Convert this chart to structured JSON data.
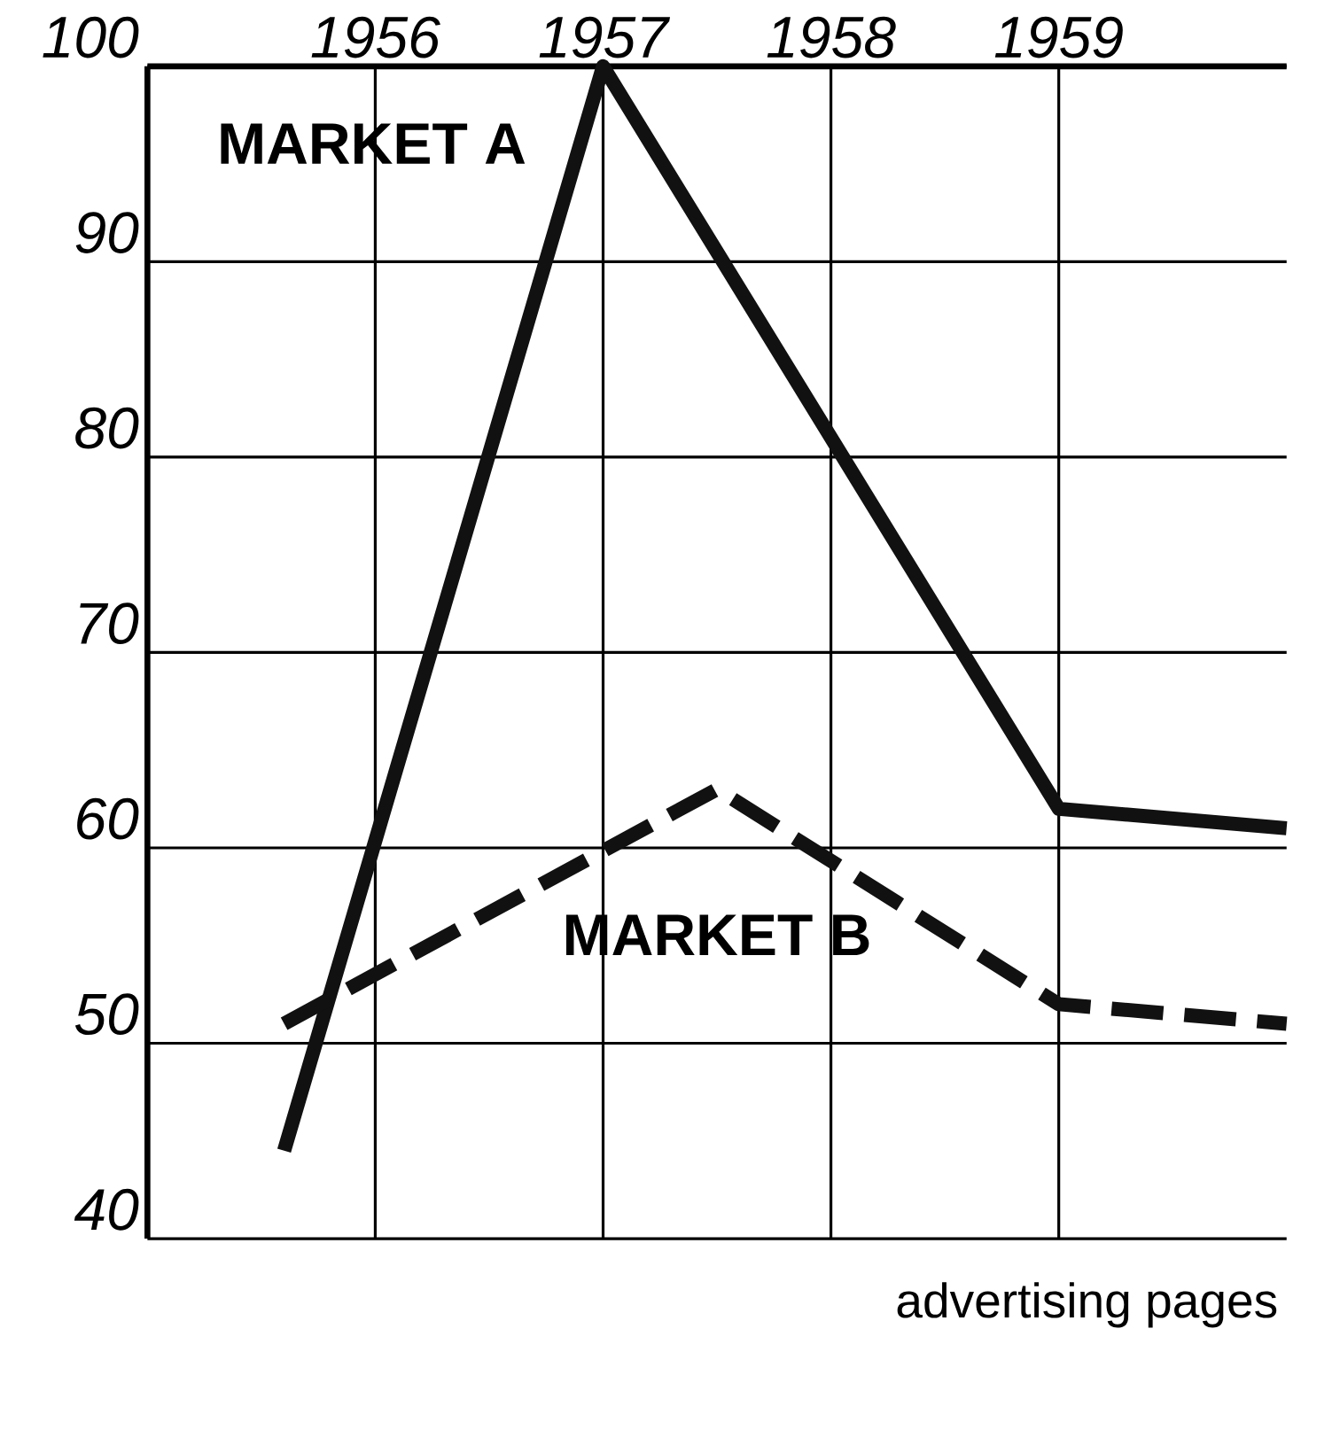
{
  "chart_data": {
    "type": "line",
    "x": [
      1955.6,
      1957,
      1959,
      1960
    ],
    "series": [
      {
        "name": "MARKET A",
        "color": "#111111",
        "line_style": "solid",
        "values": [
          44.5,
          100,
          62,
          61
        ]
      },
      {
        "name": "MARKET B",
        "color": "#111111",
        "line_style": "dashed",
        "x": [
          1955.6,
          1957.5,
          1959,
          1960
        ],
        "values": [
          51,
          63,
          52,
          51
        ]
      }
    ],
    "xlim": [
      1955,
      1960
    ],
    "xticks": [
      1956,
      1957,
      1958,
      1959
    ],
    "ylim": [
      40,
      100
    ],
    "yticks": [
      40,
      50,
      60,
      70,
      80,
      90,
      100
    ],
    "grid": true,
    "marker": "none",
    "annotations": [
      "advertising pages"
    ]
  }
}
